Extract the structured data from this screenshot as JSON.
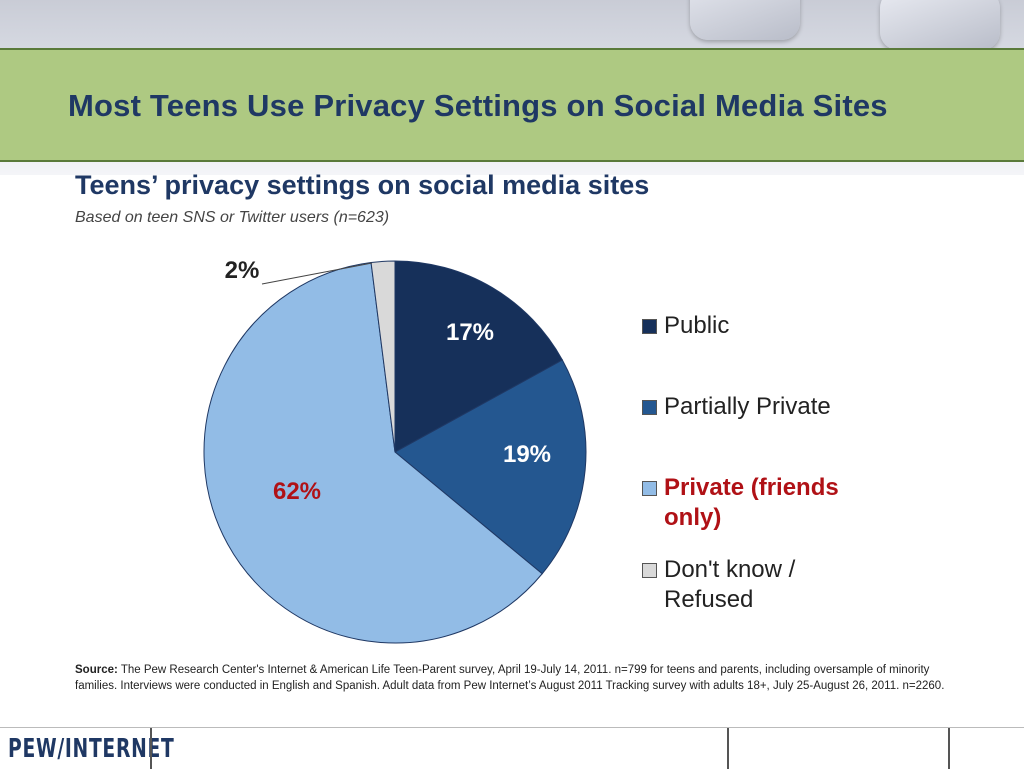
{
  "slide_title": "Most Teens Use Privacy Settings on Social Media Sites",
  "chart_data": {
    "type": "pie",
    "title": "Teens’ privacy settings on social media sites",
    "subtitle": "Based on teen SNS or Twitter users (n=623)",
    "slices": [
      {
        "label": "Public",
        "value": 17,
        "display": "17%",
        "color": "#16305a"
      },
      {
        "label": "Partially Private",
        "value": 19,
        "display": "19%",
        "color": "#245790"
      },
      {
        "label": "Private (friends only)",
        "value": 62,
        "display": "62%",
        "color": "#92bce6"
      },
      {
        "label": "Don't know / Refused",
        "value": 2,
        "display": "2%",
        "color": "#d9d9d9"
      }
    ],
    "legend_placement": "right",
    "highlight_color": "#b01116"
  },
  "legend": {
    "public": "Public",
    "partial": "Partially Private",
    "private_1": "Private (friends",
    "private_2": "only)",
    "dontknow_1": "Don't know /",
    "dontknow_2": "Refused"
  },
  "source": {
    "label": "Source:",
    "text": "The Pew Research Center's Internet & American Life Teen-Parent survey, April 19-July 14, 2011. n=799 for teens and parents, including oversample of minority families. Interviews were conducted in English and Spanish. Adult data from Pew Internet’s August 2011 Tracking survey with adults 18+, July 25-August 26, 2011. n=2260."
  },
  "footer": {
    "logo": "PEW/INTERNET"
  },
  "colors": {
    "title_band": "#aec982",
    "title_text": "#1f3864"
  }
}
